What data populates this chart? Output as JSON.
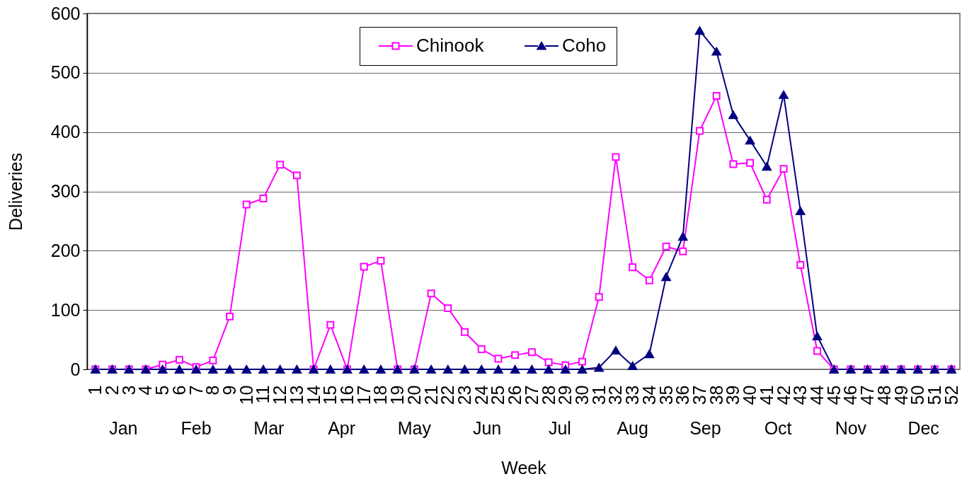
{
  "chart_data": {
    "type": "line",
    "xlabel": "Week",
    "ylabel": "Deliveries",
    "x": [
      1,
      2,
      3,
      4,
      5,
      6,
      7,
      8,
      9,
      10,
      11,
      12,
      13,
      14,
      15,
      16,
      17,
      18,
      19,
      20,
      21,
      22,
      23,
      24,
      25,
      26,
      27,
      28,
      29,
      30,
      31,
      32,
      33,
      34,
      35,
      36,
      37,
      38,
      39,
      40,
      41,
      42,
      43,
      44,
      45,
      46,
      47,
      48,
      49,
      50,
      51,
      52
    ],
    "xlim": [
      0.5,
      52.5
    ],
    "xticks": [
      1,
      2,
      3,
      4,
      5,
      6,
      7,
      8,
      9,
      10,
      11,
      12,
      13,
      14,
      15,
      16,
      17,
      18,
      19,
      20,
      21,
      22,
      23,
      24,
      25,
      26,
      27,
      28,
      29,
      30,
      31,
      32,
      33,
      34,
      35,
      36,
      37,
      38,
      39,
      40,
      41,
      42,
      43,
      44,
      45,
      46,
      47,
      48,
      49,
      50,
      51,
      52
    ],
    "ylim": [
      0,
      600
    ],
    "yticks": [
      0,
      100,
      200,
      300,
      400,
      500,
      600
    ],
    "grid": "y",
    "legend": "top",
    "series": [
      {
        "name": "Chinook",
        "color": "#ff00ff",
        "marker": "square",
        "values": [
          0,
          0,
          0,
          0,
          8,
          16,
          4,
          15,
          89,
          278,
          288,
          345,
          327,
          0,
          75,
          0,
          173,
          183,
          0,
          0,
          128,
          103,
          63,
          34,
          18,
          24,
          29,
          12,
          7,
          13,
          122,
          358,
          172,
          150,
          207,
          199,
          402,
          461,
          346,
          348,
          286,
          338,
          176,
          31,
          0,
          0,
          0,
          0,
          0,
          0,
          0,
          0
        ]
      },
      {
        "name": "Coho",
        "color": "#000080",
        "marker": "triangle",
        "values": [
          0,
          0,
          0,
          0,
          0,
          0,
          0,
          0,
          0,
          0,
          0,
          0,
          0,
          0,
          0,
          0,
          0,
          0,
          0,
          0,
          0,
          0,
          0,
          0,
          0,
          0,
          0,
          0,
          0,
          0,
          3,
          32,
          6,
          26,
          156,
          224,
          571,
          536,
          429,
          386,
          342,
          463,
          267,
          56,
          0,
          0,
          0,
          0,
          0,
          0,
          0,
          0
        ]
      }
    ],
    "annotations": [
      "Jan",
      "Feb",
      "Mar",
      "Apr",
      "May",
      "Jun",
      "Jul",
      "Aug",
      "Sep",
      "Oct",
      "Nov",
      "Dec"
    ]
  }
}
